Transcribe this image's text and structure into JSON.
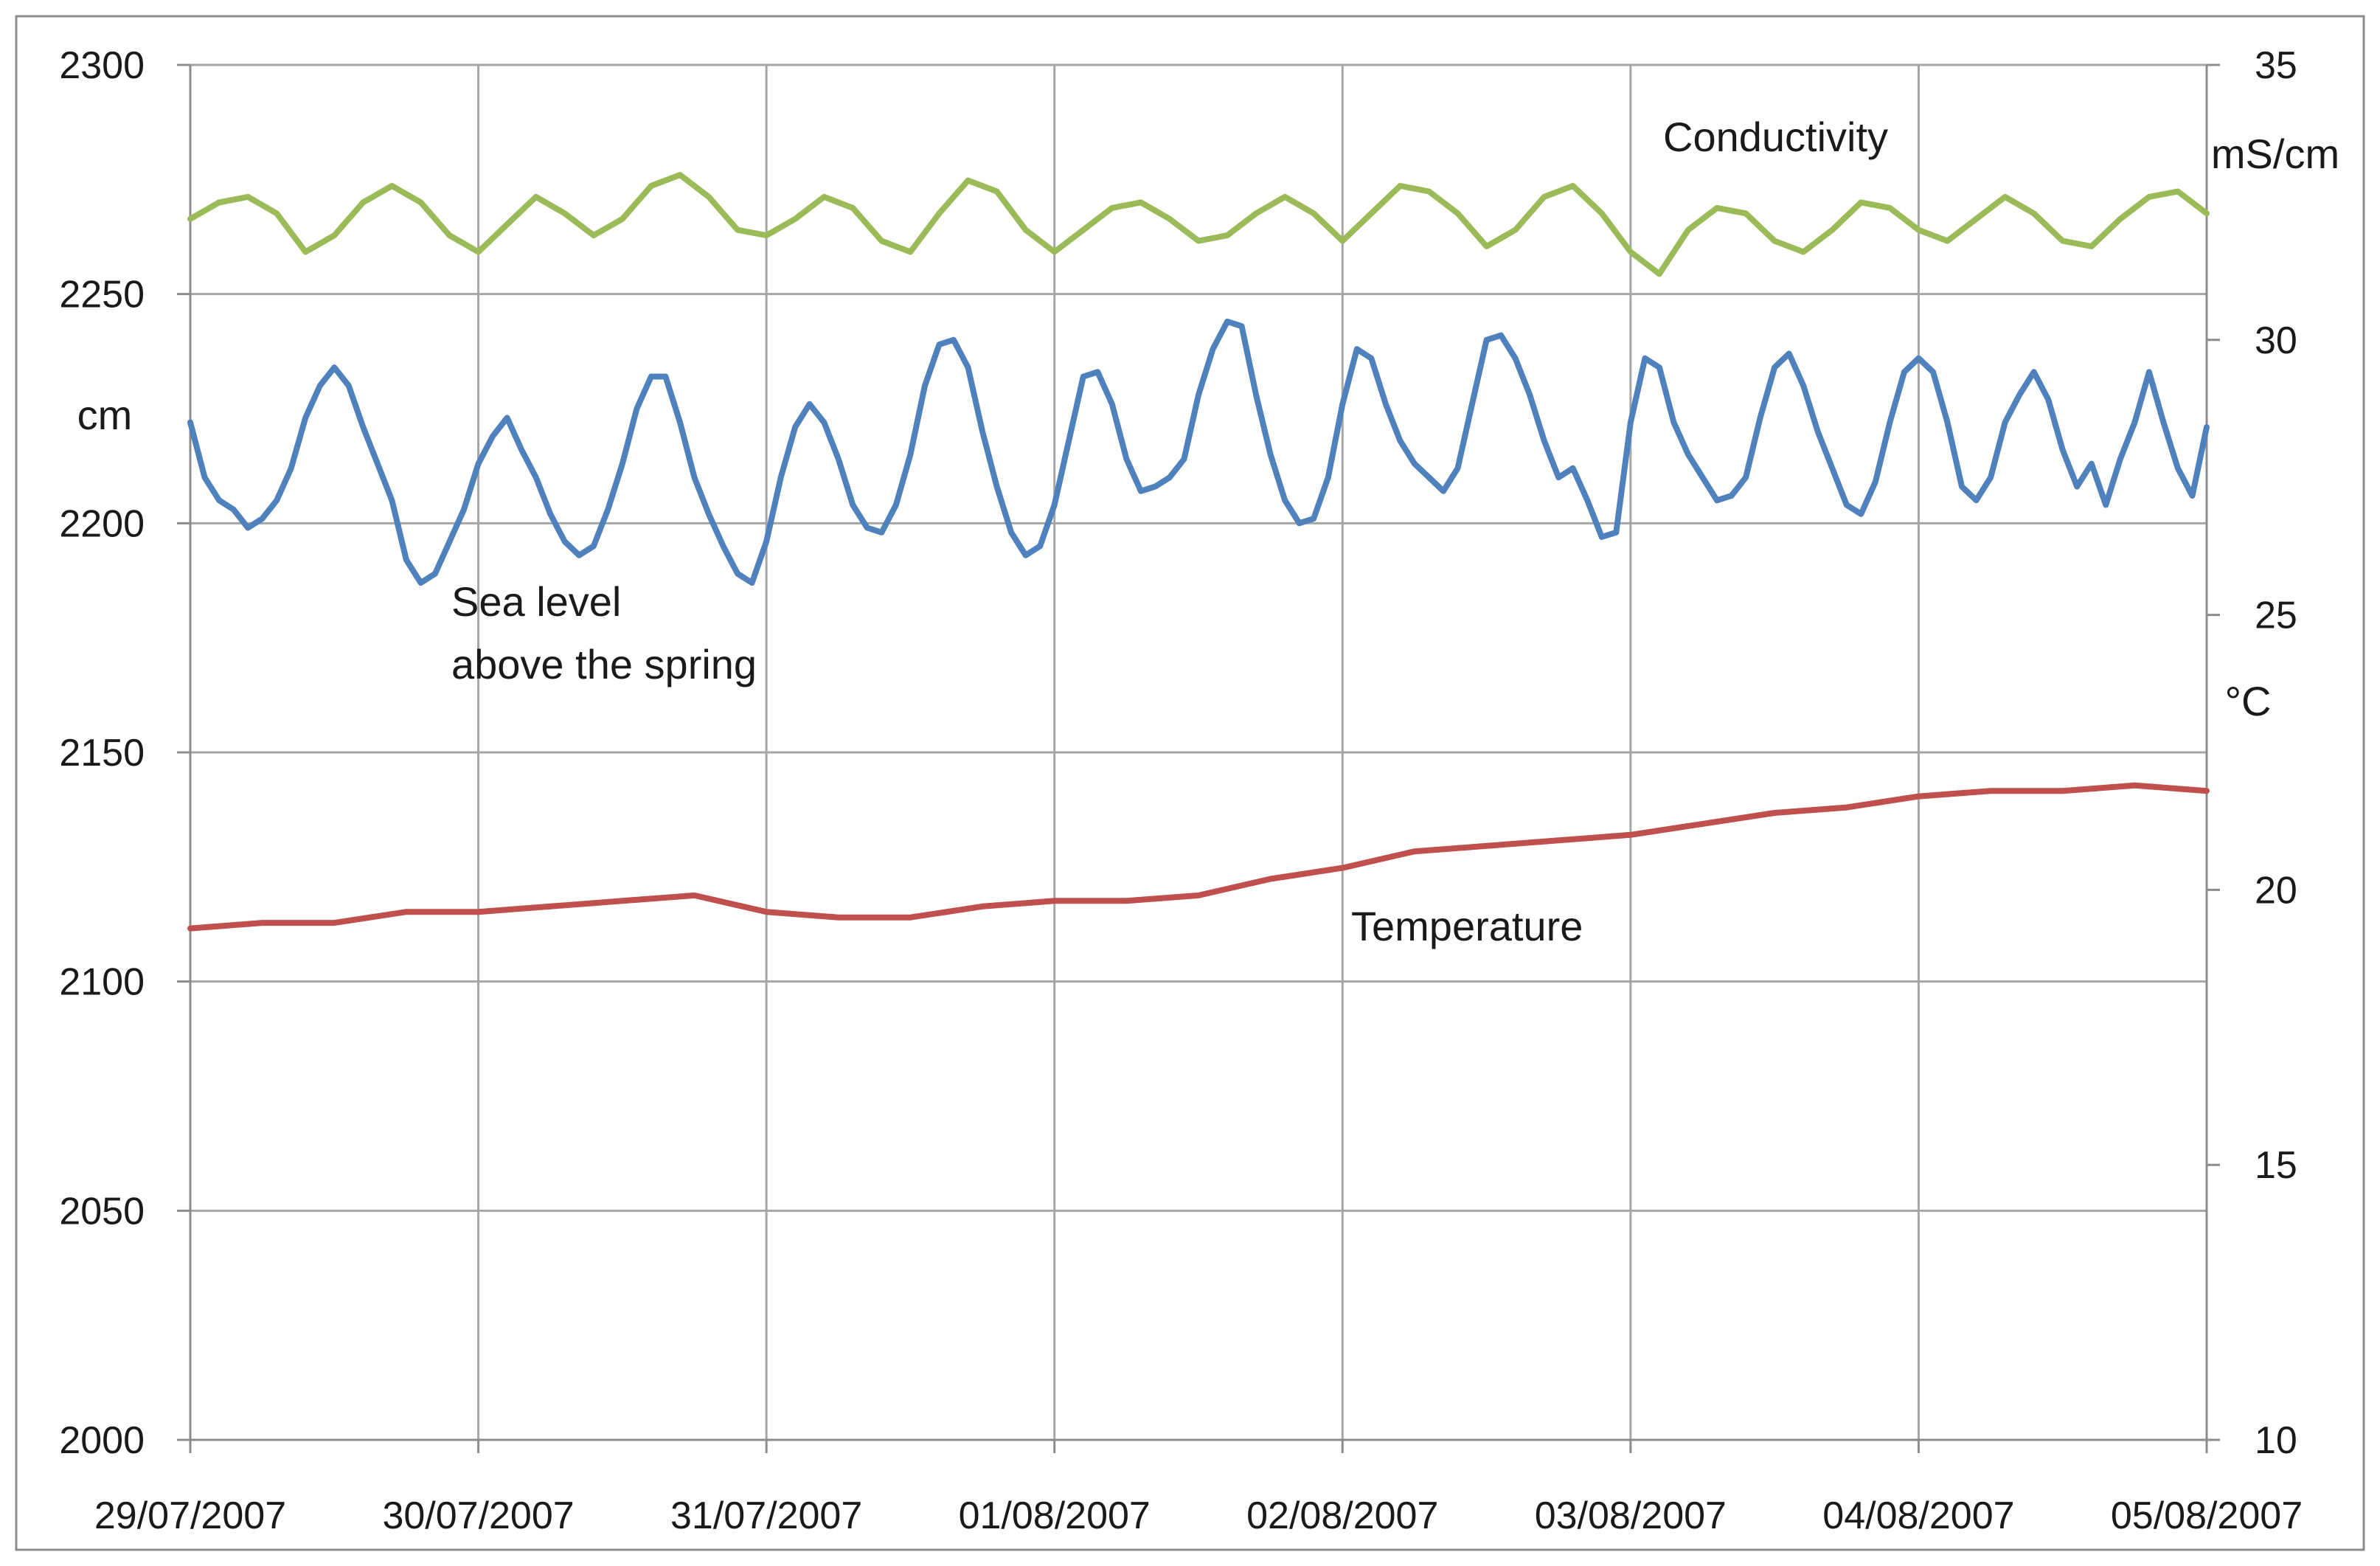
{
  "chart_data": {
    "type": "line",
    "title": "",
    "x": [
      "29/07/2007",
      "30/07/2007",
      "31/07/2007",
      "01/08/2007",
      "02/08/2007",
      "03/08/2007",
      "04/08/2007",
      "05/08/2007"
    ],
    "xlim": [
      0,
      7
    ],
    "y_left": {
      "label": "cm",
      "ylim": [
        2000,
        2300
      ],
      "ticks": [
        "2000",
        "2050",
        "2100",
        "2150",
        "2200",
        "2250",
        "2300"
      ]
    },
    "y_right": {
      "label_top": "mS/cm",
      "label_mid": "°C",
      "ylim": [
        10,
        35
      ],
      "ticks": [
        "10",
        "15",
        "20",
        "25",
        "30",
        "35"
      ]
    },
    "grid": true,
    "series": [
      {
        "name": "Conductivity",
        "axis": "right",
        "unit": "mS/cm",
        "color": "#9bbb59",
        "points": [
          [
            0.0,
            32.2
          ],
          [
            0.1,
            32.5
          ],
          [
            0.2,
            32.6
          ],
          [
            0.3,
            32.3
          ],
          [
            0.4,
            31.6
          ],
          [
            0.5,
            31.9
          ],
          [
            0.6,
            32.5
          ],
          [
            0.7,
            32.8
          ],
          [
            0.8,
            32.5
          ],
          [
            0.9,
            31.9
          ],
          [
            1.0,
            31.6
          ],
          [
            1.1,
            32.1
          ],
          [
            1.2,
            32.6
          ],
          [
            1.3,
            32.3
          ],
          [
            1.4,
            31.9
          ],
          [
            1.5,
            32.2
          ],
          [
            1.6,
            32.8
          ],
          [
            1.7,
            33.0
          ],
          [
            1.8,
            32.6
          ],
          [
            1.9,
            32.0
          ],
          [
            2.0,
            31.9
          ],
          [
            2.1,
            32.2
          ],
          [
            2.2,
            32.6
          ],
          [
            2.3,
            32.4
          ],
          [
            2.4,
            31.8
          ],
          [
            2.5,
            31.6
          ],
          [
            2.6,
            32.3
          ],
          [
            2.7,
            32.9
          ],
          [
            2.8,
            32.7
          ],
          [
            2.9,
            32.0
          ],
          [
            3.0,
            31.6
          ],
          [
            3.1,
            32.0
          ],
          [
            3.2,
            32.4
          ],
          [
            3.3,
            32.5
          ],
          [
            3.4,
            32.2
          ],
          [
            3.5,
            31.8
          ],
          [
            3.6,
            31.9
          ],
          [
            3.7,
            32.3
          ],
          [
            3.8,
            32.6
          ],
          [
            3.9,
            32.3
          ],
          [
            4.0,
            31.8
          ],
          [
            4.1,
            32.3
          ],
          [
            4.2,
            32.8
          ],
          [
            4.3,
            32.7
          ],
          [
            4.4,
            32.3
          ],
          [
            4.5,
            31.7
          ],
          [
            4.6,
            32.0
          ],
          [
            4.7,
            32.6
          ],
          [
            4.8,
            32.8
          ],
          [
            4.9,
            32.3
          ],
          [
            5.0,
            31.6
          ],
          [
            5.1,
            31.2
          ],
          [
            5.2,
            32.0
          ],
          [
            5.3,
            32.4
          ],
          [
            5.4,
            32.3
          ],
          [
            5.5,
            31.8
          ],
          [
            5.6,
            31.6
          ],
          [
            5.7,
            32.0
          ],
          [
            5.8,
            32.5
          ],
          [
            5.9,
            32.4
          ],
          [
            6.0,
            32.0
          ],
          [
            6.1,
            31.8
          ],
          [
            6.2,
            32.2
          ],
          [
            6.3,
            32.6
          ],
          [
            6.4,
            32.3
          ],
          [
            6.5,
            31.8
          ],
          [
            6.6,
            31.7
          ],
          [
            6.7,
            32.2
          ],
          [
            6.8,
            32.6
          ],
          [
            6.9,
            32.7
          ],
          [
            7.0,
            32.3
          ]
        ]
      },
      {
        "name": "Sea level above the spring",
        "axis": "left",
        "unit": "cm",
        "color": "#4f81bd",
        "points": [
          [
            0.0,
            2222
          ],
          [
            0.05,
            2210
          ],
          [
            0.1,
            2205
          ],
          [
            0.15,
            2203
          ],
          [
            0.2,
            2199
          ],
          [
            0.25,
            2201
          ],
          [
            0.3,
            2205
          ],
          [
            0.35,
            2212
          ],
          [
            0.4,
            2223
          ],
          [
            0.45,
            2230
          ],
          [
            0.5,
            2234
          ],
          [
            0.55,
            2230
          ],
          [
            0.6,
            2221
          ],
          [
            0.65,
            2213
          ],
          [
            0.7,
            2205
          ],
          [
            0.75,
            2192
          ],
          [
            0.8,
            2187
          ],
          [
            0.85,
            2189
          ],
          [
            0.9,
            2196
          ],
          [
            0.95,
            2203
          ],
          [
            1.0,
            2213
          ],
          [
            1.05,
            2219
          ],
          [
            1.1,
            2223
          ],
          [
            1.15,
            2216
          ],
          [
            1.2,
            2210
          ],
          [
            1.25,
            2202
          ],
          [
            1.3,
            2196
          ],
          [
            1.35,
            2193
          ],
          [
            1.4,
            2195
          ],
          [
            1.45,
            2203
          ],
          [
            1.5,
            2213
          ],
          [
            1.55,
            2225
          ],
          [
            1.6,
            2232
          ],
          [
            1.65,
            2232
          ],
          [
            1.7,
            2222
          ],
          [
            1.75,
            2210
          ],
          [
            1.8,
            2202
          ],
          [
            1.85,
            2195
          ],
          [
            1.9,
            2189
          ],
          [
            1.95,
            2187
          ],
          [
            2.0,
            2196
          ],
          [
            2.05,
            2210
          ],
          [
            2.1,
            2221
          ],
          [
            2.15,
            2226
          ],
          [
            2.2,
            2222
          ],
          [
            2.25,
            2214
          ],
          [
            2.3,
            2204
          ],
          [
            2.35,
            2199
          ],
          [
            2.4,
            2198
          ],
          [
            2.45,
            2204
          ],
          [
            2.5,
            2215
          ],
          [
            2.55,
            2230
          ],
          [
            2.6,
            2239
          ],
          [
            2.65,
            2240
          ],
          [
            2.7,
            2234
          ],
          [
            2.75,
            2220
          ],
          [
            2.8,
            2208
          ],
          [
            2.85,
            2198
          ],
          [
            2.9,
            2193
          ],
          [
            2.95,
            2195
          ],
          [
            3.0,
            2204
          ],
          [
            3.05,
            2218
          ],
          [
            3.1,
            2232
          ],
          [
            3.15,
            2233
          ],
          [
            3.2,
            2226
          ],
          [
            3.25,
            2214
          ],
          [
            3.3,
            2207
          ],
          [
            3.35,
            2208
          ],
          [
            3.4,
            2210
          ],
          [
            3.45,
            2214
          ],
          [
            3.5,
            2228
          ],
          [
            3.55,
            2238
          ],
          [
            3.6,
            2244
          ],
          [
            3.65,
            2243
          ],
          [
            3.7,
            2228
          ],
          [
            3.75,
            2215
          ],
          [
            3.8,
            2205
          ],
          [
            3.85,
            2200
          ],
          [
            3.9,
            2201
          ],
          [
            3.95,
            2210
          ],
          [
            4.0,
            2226
          ],
          [
            4.05,
            2238
          ],
          [
            4.1,
            2236
          ],
          [
            4.15,
            2226
          ],
          [
            4.2,
            2218
          ],
          [
            4.25,
            2213
          ],
          [
            4.3,
            2210
          ],
          [
            4.35,
            2207
          ],
          [
            4.4,
            2212
          ],
          [
            4.45,
            2226
          ],
          [
            4.5,
            2240
          ],
          [
            4.55,
            2241
          ],
          [
            4.6,
            2236
          ],
          [
            4.65,
            2228
          ],
          [
            4.7,
            2218
          ],
          [
            4.75,
            2210
          ],
          [
            4.8,
            2212
          ],
          [
            4.85,
            2205
          ],
          [
            4.9,
            2197
          ],
          [
            4.95,
            2198
          ],
          [
            5.0,
            2222
          ],
          [
            5.05,
            2236
          ],
          [
            5.1,
            2234
          ],
          [
            5.15,
            2222
          ],
          [
            5.2,
            2215
          ],
          [
            5.25,
            2210
          ],
          [
            5.3,
            2205
          ],
          [
            5.35,
            2206
          ],
          [
            5.4,
            2210
          ],
          [
            5.45,
            2223
          ],
          [
            5.5,
            2234
          ],
          [
            5.55,
            2237
          ],
          [
            5.6,
            2230
          ],
          [
            5.65,
            2220
          ],
          [
            5.7,
            2212
          ],
          [
            5.75,
            2204
          ],
          [
            5.8,
            2202
          ],
          [
            5.85,
            2209
          ],
          [
            5.9,
            2222
          ],
          [
            5.95,
            2233
          ],
          [
            6.0,
            2236
          ],
          [
            6.05,
            2233
          ],
          [
            6.1,
            2222
          ],
          [
            6.15,
            2208
          ],
          [
            6.2,
            2205
          ],
          [
            6.25,
            2210
          ],
          [
            6.3,
            2222
          ],
          [
            6.35,
            2228
          ],
          [
            6.4,
            2233
          ],
          [
            6.45,
            2227
          ],
          [
            6.5,
            2216
          ],
          [
            6.55,
            2208
          ],
          [
            6.6,
            2213
          ],
          [
            6.65,
            2204
          ],
          [
            6.7,
            2214
          ],
          [
            6.75,
            2222
          ],
          [
            6.8,
            2233
          ],
          [
            6.85,
            2222
          ],
          [
            6.9,
            2212
          ],
          [
            6.95,
            2206
          ],
          [
            7.0,
            2221
          ]
        ]
      },
      {
        "name": "Temperature",
        "axis": "right",
        "unit": "°C",
        "color": "#c0504d",
        "points": [
          [
            0.0,
            19.3
          ],
          [
            0.25,
            19.4
          ],
          [
            0.5,
            19.4
          ],
          [
            0.75,
            19.6
          ],
          [
            1.0,
            19.6
          ],
          [
            1.25,
            19.7
          ],
          [
            1.5,
            19.8
          ],
          [
            1.75,
            19.9
          ],
          [
            2.0,
            19.6
          ],
          [
            2.25,
            19.5
          ],
          [
            2.5,
            19.5
          ],
          [
            2.75,
            19.7
          ],
          [
            3.0,
            19.8
          ],
          [
            3.25,
            19.8
          ],
          [
            3.5,
            19.9
          ],
          [
            3.75,
            20.2
          ],
          [
            4.0,
            20.4
          ],
          [
            4.25,
            20.7
          ],
          [
            4.5,
            20.8
          ],
          [
            4.75,
            20.9
          ],
          [
            5.0,
            21.0
          ],
          [
            5.25,
            21.2
          ],
          [
            5.5,
            21.4
          ],
          [
            5.75,
            21.5
          ],
          [
            6.0,
            21.7
          ],
          [
            6.25,
            21.8
          ],
          [
            6.5,
            21.8
          ],
          [
            6.75,
            21.9
          ],
          [
            7.0,
            21.8
          ]
        ]
      }
    ],
    "annotations": [
      {
        "id": "conductivity",
        "lines": [
          "Conductivity"
        ]
      },
      {
        "id": "sea-level",
        "lines": [
          "Sea level",
          "above the spring"
        ]
      },
      {
        "id": "temperature",
        "lines": [
          "Temperature"
        ]
      }
    ]
  }
}
